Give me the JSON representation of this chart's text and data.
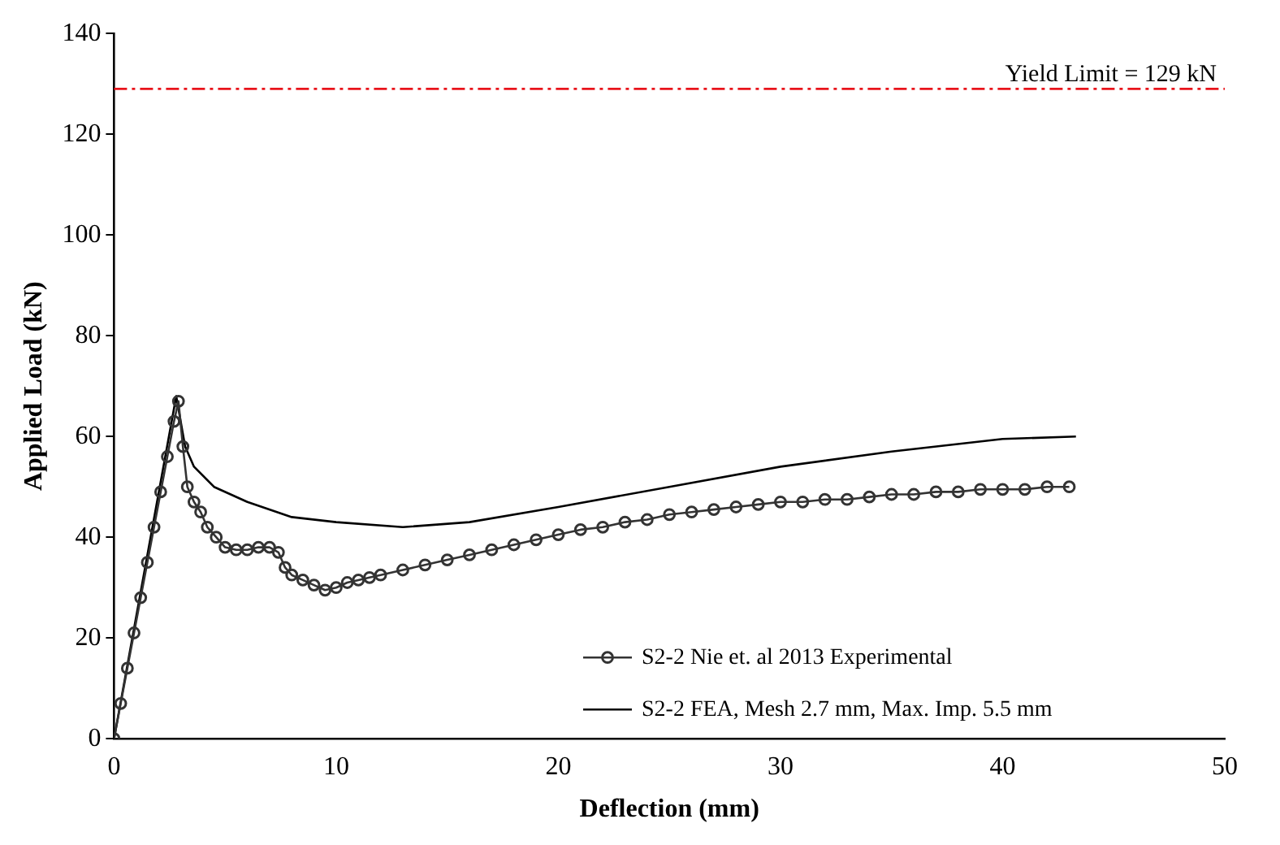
{
  "chart_data": {
    "type": "line",
    "xlabel": "Deflection (mm)",
    "ylabel": "Applied Load (kN)",
    "xlim": [
      0,
      50
    ],
    "xticks": [
      0,
      10,
      20,
      30,
      40,
      50
    ],
    "ylim": [
      0,
      140
    ],
    "yticks": [
      0,
      20,
      40,
      60,
      80,
      100,
      120,
      140
    ],
    "grid": false,
    "legend": "bottom right",
    "series": [
      {
        "name": "S2-2 Nie et. al 2013 Experimental",
        "color": "#333333",
        "marker": "circle",
        "line_style": "solid",
        "x": [
          0,
          0.3,
          0.6,
          0.9,
          1.2,
          1.5,
          1.8,
          2.1,
          2.4,
          2.7,
          2.9,
          3.1,
          3.3,
          3.6,
          3.9,
          4.2,
          4.6,
          5,
          5.5,
          6,
          6.5,
          7,
          7.4,
          7.7,
          8,
          8.5,
          9,
          9.5,
          10,
          10.5,
          11,
          11.5,
          12,
          13,
          14,
          15,
          16,
          17,
          18,
          19,
          20,
          21,
          22,
          23,
          24,
          25,
          26,
          27,
          28,
          29,
          30,
          31,
          32,
          33,
          34,
          35,
          36,
          37,
          38,
          39,
          40,
          41,
          42,
          43
        ],
        "values": [
          0,
          7,
          14,
          21,
          28,
          35,
          42,
          49,
          56,
          63,
          67,
          58,
          50,
          47,
          45,
          42,
          40,
          38,
          37.5,
          37.5,
          38,
          38,
          37,
          34,
          32.5,
          31.5,
          30.5,
          29.5,
          30,
          31,
          31.5,
          32,
          32.5,
          33.5,
          34.5,
          35.5,
          36.5,
          37.5,
          38.5,
          39.5,
          40.5,
          41.5,
          42,
          43,
          43.5,
          44.5,
          45,
          45.5,
          46,
          46.5,
          47,
          47,
          47.5,
          47.5,
          48,
          48.5,
          48.5,
          49,
          49,
          49.5,
          49.5,
          49.5,
          50,
          50
        ]
      },
      {
        "name": "S2-2 FEA, Mesh 2.7 mm, Max. Imp. 5.5 mm",
        "color": "#000000",
        "marker": "none",
        "line_style": "solid",
        "x": [
          0,
          2.8,
          3.2,
          3.6,
          4.5,
          6,
          8,
          10,
          13,
          16,
          20,
          25,
          30,
          35,
          40,
          43.3
        ],
        "values": [
          0,
          68,
          58,
          54,
          50,
          47,
          44,
          43,
          42,
          43,
          46,
          50,
          54,
          57,
          59.5,
          60
        ]
      }
    ],
    "ref_lines": [
      {
        "axis": "y",
        "value": 129,
        "label": "Yield Limit = 129 kN",
        "color": "#e8141c",
        "line_style": "dashdot"
      }
    ]
  }
}
